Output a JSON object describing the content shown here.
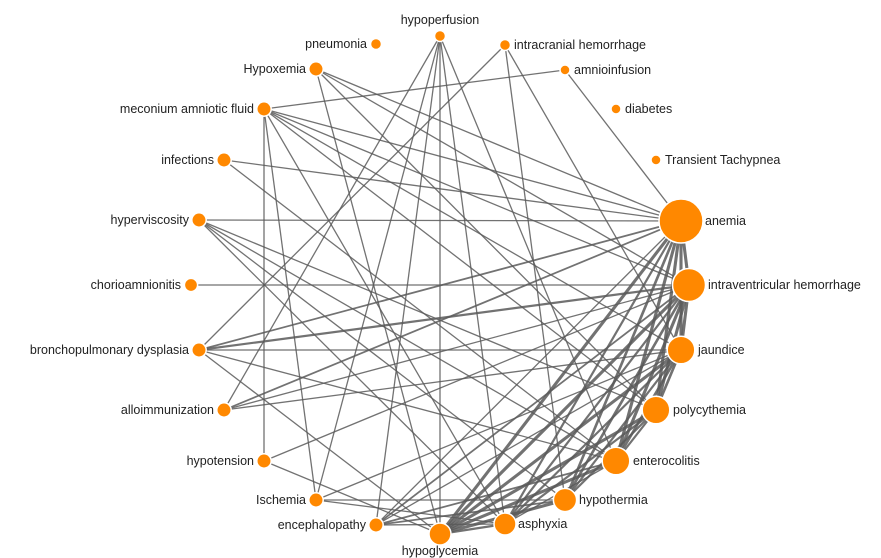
{
  "graph": {
    "nodes": [
      {
        "id": "hypoperfusion",
        "label": "hypoperfusion",
        "size": 1
      },
      {
        "id": "pneumonia",
        "label": "pneumonia",
        "size": 1
      },
      {
        "id": "intracranial",
        "label": "intracranial hemorrhage",
        "size": 1
      },
      {
        "id": "hypoxemia",
        "label": "Hypoxemia",
        "size": 1.3
      },
      {
        "id": "amnioinfusion",
        "label": "amnioinfusion",
        "size": 0.9
      },
      {
        "id": "meconium",
        "label": "meconium amniotic fluid",
        "size": 1.3
      },
      {
        "id": "diabetes",
        "label": "diabetes",
        "size": 0.9
      },
      {
        "id": "infections",
        "label": "infections",
        "size": 1.3
      },
      {
        "id": "ttn",
        "label": "Transient Tachypnea",
        "size": 0.9
      },
      {
        "id": "hyperviscosity",
        "label": "hyperviscosity",
        "size": 1.3
      },
      {
        "id": "anemia",
        "label": "anemia",
        "size": 4
      },
      {
        "id": "chorio",
        "label": "chorioamnionitis",
        "size": 1.2
      },
      {
        "id": "ivh",
        "label": "intraventricular hemorrhage",
        "size": 3
      },
      {
        "id": "bpd",
        "label": "bronchopulmonary dysplasia",
        "size": 1.3
      },
      {
        "id": "jaundice",
        "label": "jaundice",
        "size": 2.5
      },
      {
        "id": "alloimm",
        "label": "alloimmunization",
        "size": 1.3
      },
      {
        "id": "polycythemia",
        "label": "polycythemia",
        "size": 2.5
      },
      {
        "id": "hypotension",
        "label": "hypotension",
        "size": 1.3
      },
      {
        "id": "enterocolitis",
        "label": "enterocolitis",
        "size": 2.5
      },
      {
        "id": "ischemia",
        "label": "Ischemia",
        "size": 1.3
      },
      {
        "id": "hypothermia",
        "label": "hypothermia",
        "size": 2.1
      },
      {
        "id": "encephalopathy",
        "label": "encephalopathy",
        "size": 1.3
      },
      {
        "id": "asphyxia",
        "label": "asphyxia",
        "size": 2
      },
      {
        "id": "hypoglycemia",
        "label": "hypoglycemia",
        "size": 2
      }
    ],
    "edges": [
      {
        "source": "meconium",
        "target": "anemia",
        "weight": 1
      },
      {
        "source": "meconium",
        "target": "ivh",
        "weight": 1
      },
      {
        "source": "meconium",
        "target": "jaundice",
        "weight": 1
      },
      {
        "source": "meconium",
        "target": "polycythemia",
        "weight": 1
      },
      {
        "source": "meconium",
        "target": "asphyxia",
        "weight": 1
      },
      {
        "source": "meconium",
        "target": "amnioinfusion",
        "weight": 1
      },
      {
        "source": "meconium",
        "target": "hypotension",
        "weight": 1
      },
      {
        "source": "meconium",
        "target": "ischemia",
        "weight": 1
      },
      {
        "source": "infections",
        "target": "anemia",
        "weight": 1
      },
      {
        "source": "infections",
        "target": "enterocolitis",
        "weight": 1
      },
      {
        "source": "hyperviscosity",
        "target": "anemia",
        "weight": 1
      },
      {
        "source": "hyperviscosity",
        "target": "polycythemia",
        "weight": 1
      },
      {
        "source": "hyperviscosity",
        "target": "enterocolitis",
        "weight": 1
      },
      {
        "source": "hyperviscosity",
        "target": "hypothermia",
        "weight": 1
      },
      {
        "source": "hyperviscosity",
        "target": "asphyxia",
        "weight": 1
      },
      {
        "source": "chorio",
        "target": "ivh",
        "weight": 1
      },
      {
        "source": "bpd",
        "target": "anemia",
        "weight": 1.5
      },
      {
        "source": "bpd",
        "target": "ivh",
        "weight": 2
      },
      {
        "source": "bpd",
        "target": "jaundice",
        "weight": 1
      },
      {
        "source": "bpd",
        "target": "hypoglycemia",
        "weight": 1
      },
      {
        "source": "bpd",
        "target": "intracranial",
        "weight": 1
      },
      {
        "source": "bpd",
        "target": "enterocolitis",
        "weight": 1
      },
      {
        "source": "alloimm",
        "target": "anemia",
        "weight": 1.5
      },
      {
        "source": "alloimm",
        "target": "ivh",
        "weight": 1
      },
      {
        "source": "alloimm",
        "target": "jaundice",
        "weight": 1
      },
      {
        "source": "alloimm",
        "target": "hypoperfusion",
        "weight": 1
      },
      {
        "source": "hypotension",
        "target": "ivh",
        "weight": 1
      },
      {
        "source": "hypotension",
        "target": "hypoglycemia",
        "weight": 1
      },
      {
        "source": "ischemia",
        "target": "hypothermia",
        "weight": 1
      },
      {
        "source": "ischemia",
        "target": "jaundice",
        "weight": 1
      },
      {
        "source": "ischemia",
        "target": "asphyxia",
        "weight": 1
      },
      {
        "source": "ischemia",
        "target": "hypoperfusion",
        "weight": 1
      },
      {
        "source": "encephalopathy",
        "target": "hypoperfusion",
        "weight": 1
      },
      {
        "source": "encephalopathy",
        "target": "anemia",
        "weight": 1
      },
      {
        "source": "encephalopathy",
        "target": "ivh",
        "weight": 1.5
      },
      {
        "source": "encephalopathy",
        "target": "jaundice",
        "weight": 1
      },
      {
        "source": "encephalopathy",
        "target": "enterocolitis",
        "weight": 1.5
      },
      {
        "source": "encephalopathy",
        "target": "hypothermia",
        "weight": 1.5
      },
      {
        "source": "encephalopathy",
        "target": "asphyxia",
        "weight": 1
      },
      {
        "source": "hypoglycemia",
        "target": "hypoperfusion",
        "weight": 1
      },
      {
        "source": "hypoglycemia",
        "target": "hypoxemia",
        "weight": 1
      },
      {
        "source": "hypoglycemia",
        "target": "anemia",
        "weight": 3
      },
      {
        "source": "hypoglycemia",
        "target": "ivh",
        "weight": 3
      },
      {
        "source": "hypoglycemia",
        "target": "jaundice",
        "weight": 3
      },
      {
        "source": "hypoglycemia",
        "target": "polycythemia",
        "weight": 3
      },
      {
        "source": "hypoglycemia",
        "target": "enterocolitis",
        "weight": 3
      },
      {
        "source": "hypoglycemia",
        "target": "hypothermia",
        "weight": 3
      },
      {
        "source": "hypoglycemia",
        "target": "asphyxia",
        "weight": 2
      },
      {
        "source": "asphyxia",
        "target": "hypoperfusion",
        "weight": 1
      },
      {
        "source": "asphyxia",
        "target": "anemia",
        "weight": 2
      },
      {
        "source": "asphyxia",
        "target": "ivh",
        "weight": 2
      },
      {
        "source": "asphyxia",
        "target": "jaundice",
        "weight": 2
      },
      {
        "source": "asphyxia",
        "target": "polycythemia",
        "weight": 2
      },
      {
        "source": "asphyxia",
        "target": "enterocolitis",
        "weight": 1
      },
      {
        "source": "hypothermia",
        "target": "anemia",
        "weight": 2.5
      },
      {
        "source": "hypothermia",
        "target": "ivh",
        "weight": 2.5
      },
      {
        "source": "hypothermia",
        "target": "jaundice",
        "weight": 2
      },
      {
        "source": "hypothermia",
        "target": "polycythemia",
        "weight": 2
      },
      {
        "source": "hypothermia",
        "target": "intracranial",
        "weight": 1
      },
      {
        "source": "enterocolitis",
        "target": "anemia",
        "weight": 3
      },
      {
        "source": "enterocolitis",
        "target": "ivh",
        "weight": 3
      },
      {
        "source": "enterocolitis",
        "target": "jaundice",
        "weight": 2.5
      },
      {
        "source": "enterocolitis",
        "target": "polycythemia",
        "weight": 2
      },
      {
        "source": "enterocolitis",
        "target": "hypoperfusion",
        "weight": 1
      },
      {
        "source": "polycythemia",
        "target": "anemia",
        "weight": 3
      },
      {
        "source": "polycythemia",
        "target": "ivh",
        "weight": 3
      },
      {
        "source": "polycythemia",
        "target": "jaundice",
        "weight": 2.5
      },
      {
        "source": "polycythemia",
        "target": "hypoxemia",
        "weight": 1
      },
      {
        "source": "jaundice",
        "target": "anemia",
        "weight": 3
      },
      {
        "source": "jaundice",
        "target": "ivh",
        "weight": 3
      },
      {
        "source": "jaundice",
        "target": "intracranial",
        "weight": 1
      },
      {
        "source": "ivh",
        "target": "anemia",
        "weight": 3
      },
      {
        "source": "ivh",
        "target": "hypoxemia",
        "weight": 1
      },
      {
        "source": "anemia",
        "target": "amnioinfusion",
        "weight": 1
      },
      {
        "source": "anemia",
        "target": "hypoxemia",
        "weight": 1
      }
    ]
  },
  "colors": {
    "node": "#ff8800",
    "edge": "#595959",
    "label": "#222222"
  }
}
